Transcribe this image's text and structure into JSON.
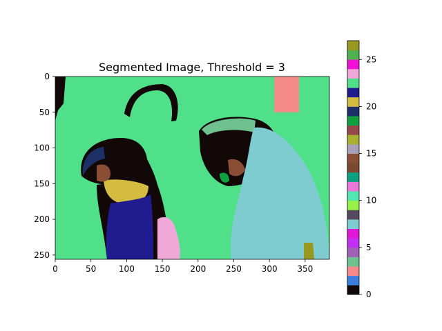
{
  "chart_data": {
    "type": "heatmap",
    "title": "Segmented Image, Threshold = 3",
    "image": {
      "width": 384,
      "height": 256
    },
    "x_axis": {
      "range": [
        0,
        384
      ],
      "ticks": [
        0,
        50,
        100,
        150,
        200,
        250,
        300,
        350
      ]
    },
    "y_axis": {
      "range": [
        256,
        0
      ],
      "inverted": true,
      "ticks": [
        0,
        50,
        100,
        150,
        200,
        250
      ]
    },
    "colorbar": {
      "range": [
        0,
        27
      ],
      "ticks": [
        0,
        5,
        10,
        15,
        20,
        25
      ],
      "levels": [
        "#120808",
        "#3a7fe0",
        "#f58a8a",
        "#6fc18f",
        "#a060b8",
        "#c030f0",
        "#e018d8",
        "#7ecbd0",
        "#56485e",
        "#98f048",
        "#50e8b0",
        "#ea78d8",
        "#0aa080",
        "#7a4a30",
        "#8a4e34",
        "#a8a0b8",
        "#a8b030",
        "#94484a",
        "#10a040",
        "#1e3068",
        "#d4bc40",
        "#201c90",
        "#50e08a",
        "#f0a8d8",
        "#f010d8",
        "#50b050",
        "#989820"
      ]
    },
    "grid": false,
    "regions": [
      {
        "label": 22,
        "color": "#50e08a",
        "desc": "background",
        "x": [
          0,
          384
        ],
        "y": [
          0,
          256
        ]
      },
      {
        "label": 0,
        "color": "#120808",
        "desc": "left bird head",
        "x": [
          38,
          108
        ],
        "y": [
          85,
          175
        ]
      },
      {
        "label": 0,
        "color": "#120808",
        "desc": "left bird neck",
        "x": [
          60,
          170
        ],
        "y": [
          120,
          256
        ]
      },
      {
        "label": 0,
        "color": "#120808",
        "desc": "right bird head",
        "x": [
          205,
          335
        ],
        "y": [
          55,
          175
        ]
      },
      {
        "label": 21,
        "color": "#201c90",
        "desc": "left bird body",
        "x": [
          75,
          138
        ],
        "y": [
          170,
          256
        ]
      },
      {
        "label": 20,
        "color": "#d4bc40",
        "desc": "left bird throat",
        "x": [
          72,
          125
        ],
        "y": [
          140,
          175
        ]
      },
      {
        "label": 7,
        "color": "#7ecbd0",
        "desc": "right bird body",
        "x": [
          255,
          375
        ],
        "y": [
          75,
          256
        ]
      },
      {
        "label": 23,
        "color": "#f0a8d8",
        "desc": "left bird chest",
        "x": [
          145,
          175
        ],
        "y": [
          195,
          256
        ]
      },
      {
        "label": 2,
        "color": "#f58a8a",
        "desc": "top right patch",
        "x": [
          305,
          340
        ],
        "y": [
          0,
          50
        ]
      }
    ]
  }
}
